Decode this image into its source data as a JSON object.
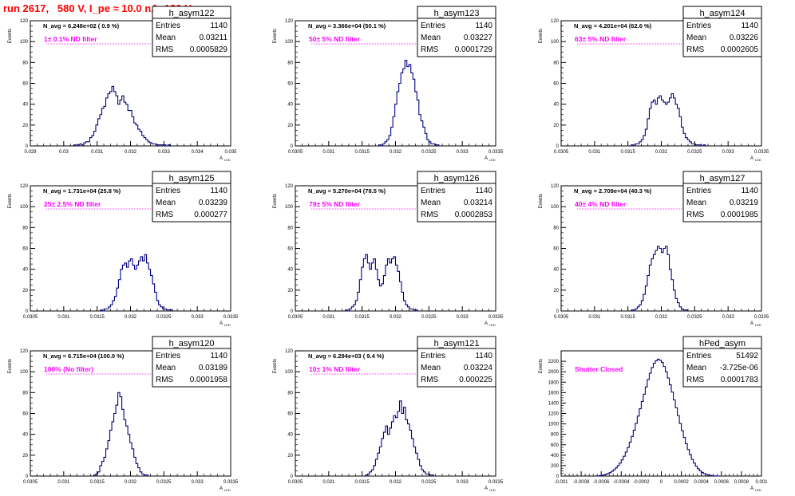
{
  "title": "run 2617,   580 V, I_pe ≈ 10.0 nA, 120 Hz",
  "colors": {
    "hist": "#000080",
    "filter_label": "#ff00ff",
    "title": "#ff0000"
  },
  "stat_labels": {
    "entries": "Entries",
    "mean": "Mean",
    "rms": "RMS"
  },
  "axis": {
    "ylabel": "Events",
    "xlabel_main": "A",
    "xlabel_sub": "LED"
  },
  "chart_data": [
    {
      "type": "histogram",
      "name": "h_asym122",
      "navg": "N_avg = 6.248e+02 ( 0.9 %)",
      "filter": "1± 0.1% ND filter",
      "entries": "1140",
      "mean": "0.03211",
      "rms": "0.0005829",
      "xlim": [
        0.029,
        0.035
      ],
      "ylim": [
        0,
        120
      ],
      "xticks": [
        "0.029",
        "0.03",
        "0.031",
        "0.032",
        "0.033",
        "0.034",
        "0.035"
      ],
      "yticks": [
        "0",
        "20",
        "40",
        "60",
        "80",
        "100",
        "120"
      ],
      "bins": {
        "x0": 0.0303,
        "w": 6e-05,
        "values": [
          1,
          0,
          1,
          2,
          1,
          3,
          4,
          4,
          8,
          10,
          14,
          20,
          26,
          30,
          36,
          38,
          46,
          50,
          52,
          57,
          52,
          48,
          40,
          44,
          48,
          42,
          40,
          34,
          34,
          28,
          22,
          20,
          16,
          14,
          10,
          8,
          6,
          4,
          3,
          2,
          2,
          1,
          1,
          1,
          1,
          1,
          0,
          1
        ]
      }
    },
    {
      "type": "histogram",
      "name": "h_asym123",
      "navg": "N_avg = 3.366e+04 (50.1 %)",
      "filter": "50± 5% ND filter",
      "entries": "1140",
      "mean": "0.03227",
      "rms": "0.0001729",
      "xlim": [
        0.0305,
        0.0335
      ],
      "ylim": [
        0,
        120
      ],
      "xticks": [
        "0.0305",
        "0.031",
        "0.0315",
        "0.032",
        "0.0325",
        "0.033",
        "0.0335"
      ],
      "yticks": [
        "0",
        "20",
        "40",
        "60",
        "80",
        "100",
        "120"
      ],
      "bins": {
        "x0": 0.03175,
        "w": 3e-05,
        "values": [
          1,
          0,
          2,
          4,
          6,
          10,
          18,
          28,
          40,
          52,
          60,
          70,
          74,
          82,
          76,
          78,
          70,
          64,
          52,
          44,
          30,
          24,
          18,
          12,
          6,
          4,
          2,
          2,
          1,
          1
        ]
      }
    },
    {
      "type": "histogram",
      "name": "h_asym124",
      "navg": "N_avg = 4.201e+04 (62.6 %)",
      "filter": "63± 5% ND filter",
      "entries": "1140",
      "mean": "0.03226",
      "rms": "0.0002605",
      "xlim": [
        0.0305,
        0.0335
      ],
      "ylim": [
        0,
        120
      ],
      "xticks": [
        "0.0305",
        "0.031",
        "0.0315",
        "0.032",
        "0.0325",
        "0.033",
        "0.0335"
      ],
      "yticks": [
        "0",
        "20",
        "40",
        "60",
        "80",
        "100",
        "120"
      ],
      "bins": {
        "x0": 0.03155,
        "w": 3e-05,
        "values": [
          1,
          0,
          2,
          2,
          4,
          6,
          10,
          16,
          26,
          36,
          42,
          44,
          40,
          46,
          48,
          44,
          42,
          40,
          42,
          46,
          50,
          46,
          40,
          36,
          28,
          18,
          12,
          8,
          6,
          4,
          2,
          2,
          1,
          1,
          1,
          0,
          1
        ]
      }
    },
    {
      "type": "histogram",
      "name": "h_asym125",
      "navg": "N_avg = 1.731e+04 (25.8 %)",
      "filter": "25± 2.5% ND filter",
      "entries": "1140",
      "mean": "0.03239",
      "rms": "0.000277",
      "xlim": [
        0.0305,
        0.0335
      ],
      "ylim": [
        0,
        120
      ],
      "xticks": [
        "0.0305",
        "0.031",
        "0.0315",
        "0.032",
        "0.0325",
        "0.033",
        "0.0335"
      ],
      "yticks": [
        "0",
        "20",
        "40",
        "60",
        "80",
        "100",
        "120"
      ],
      "bins": {
        "x0": 0.03155,
        "w": 3e-05,
        "values": [
          1,
          0,
          2,
          2,
          4,
          6,
          10,
          14,
          22,
          30,
          40,
          44,
          46,
          42,
          48,
          50,
          44,
          40,
          44,
          48,
          52,
          48,
          54,
          46,
          40,
          34,
          26,
          18,
          10,
          6,
          4,
          2,
          2,
          1,
          1,
          1
        ]
      }
    },
    {
      "type": "histogram",
      "name": "h_asym126",
      "navg": "N_avg = 5.270e+04 (78.5 %)",
      "filter": "79± 5% ND filter",
      "entries": "1140",
      "mean": "0.03214",
      "rms": "0.0002853",
      "xlim": [
        0.0305,
        0.0335
      ],
      "ylim": [
        0,
        120
      ],
      "xticks": [
        "0.0305",
        "0.031",
        "0.0315",
        "0.032",
        "0.0325",
        "0.033",
        "0.0335"
      ],
      "yticks": [
        "0",
        "20",
        "40",
        "60",
        "80",
        "100",
        "120"
      ],
      "bins": {
        "x0": 0.03125,
        "w": 3e-05,
        "values": [
          1,
          0,
          2,
          4,
          6,
          10,
          18,
          30,
          42,
          50,
          54,
          46,
          40,
          46,
          50,
          40,
          30,
          24,
          26,
          34,
          44,
          50,
          46,
          50,
          52,
          44,
          38,
          28,
          18,
          10,
          6,
          4,
          2,
          2,
          1,
          1
        ]
      }
    },
    {
      "type": "histogram",
      "name": "h_asym127",
      "navg": "N_avg = 2.709e+04 (40.3 %)",
      "filter": "40± 4% ND filter",
      "entries": "1140",
      "mean": "0.03219",
      "rms": "0.0001985",
      "xlim": [
        0.0305,
        0.0335
      ],
      "ylim": [
        0,
        120
      ],
      "xticks": [
        "0.0305",
        "0.031",
        "0.0315",
        "0.032",
        "0.0325",
        "0.033",
        "0.0335"
      ],
      "yticks": [
        "0",
        "20",
        "40",
        "60",
        "80",
        "100",
        "120"
      ],
      "bins": {
        "x0": 0.03155,
        "w": 3e-05,
        "values": [
          1,
          0,
          2,
          4,
          6,
          10,
          16,
          24,
          34,
          44,
          50,
          54,
          58,
          62,
          60,
          56,
          60,
          62,
          54,
          40,
          30,
          20,
          12,
          8,
          4,
          2,
          1,
          1
        ]
      }
    },
    {
      "type": "histogram",
      "name": "h_asym120",
      "navg": "N_avg = 6.715e+04 (100.0 %)",
      "filter": "100% (No filter)",
      "entries": "1140",
      "mean": "0.03189",
      "rms": "0.0001958",
      "xlim": [
        0.0305,
        0.0335
      ],
      "ylim": [
        0,
        120
      ],
      "xticks": [
        "0.0305",
        "0.031",
        "0.0315",
        "0.032",
        "0.0325",
        "0.033",
        "0.0335"
      ],
      "yticks": [
        "0",
        "20",
        "40",
        "60",
        "80",
        "100",
        "120"
      ],
      "bins": {
        "x0": 0.03145,
        "w": 3e-05,
        "values": [
          1,
          2,
          4,
          10,
          14,
          18,
          26,
          34,
          44,
          52,
          60,
          68,
          80,
          76,
          64,
          54,
          48,
          40,
          32,
          26,
          18,
          12,
          8,
          4,
          2,
          1,
          1
        ]
      }
    },
    {
      "type": "histogram",
      "name": "h_asym121",
      "navg": "N_avg = 6.294e+03 ( 9.4 %)",
      "filter": "10± 1% ND filter",
      "entries": "1140",
      "mean": "0.03224",
      "rms": "0.000225",
      "xlim": [
        0.0305,
        0.0335
      ],
      "ylim": [
        0,
        120
      ],
      "xticks": [
        "0.0305",
        "0.031",
        "0.0315",
        "0.032",
        "0.0325",
        "0.033",
        "0.0335"
      ],
      "yticks": [
        "0",
        "20",
        "40",
        "60",
        "80",
        "100",
        "120"
      ],
      "bins": {
        "x0": 0.03155,
        "w": 3e-05,
        "values": [
          1,
          2,
          4,
          6,
          10,
          16,
          22,
          28,
          36,
          42,
          48,
          40,
          46,
          52,
          58,
          56,
          62,
          72,
          60,
          66,
          54,
          50,
          44,
          36,
          28,
          22,
          16,
          10,
          6,
          4,
          2,
          2,
          1,
          1
        ]
      }
    },
    {
      "type": "histogram",
      "name": "hPed_asym",
      "navg": "",
      "filter": "Shutter Closed",
      "entries": "51492",
      "mean": "-3.725e-06",
      "rms": "0.0001783",
      "xlim": [
        -0.001,
        0.001
      ],
      "ylim": [
        0,
        2400
      ],
      "xticks": [
        "-0.001",
        "-0.0008",
        "-0.0006",
        "-0.0004",
        "-0.0002",
        "0",
        "0.0002",
        "0.0004",
        "0.0006",
        "0.0008",
        "0.001"
      ],
      "yticks": [
        "0",
        "200",
        "400",
        "600",
        "800",
        "1000",
        "1200",
        "1400",
        "1600",
        "1800",
        "2000",
        "2200"
      ],
      "bins": {
        "x0": -0.00066,
        "w": 2e-05,
        "values": [
          2,
          4,
          8,
          14,
          22,
          34,
          48,
          66,
          90,
          120,
          156,
          200,
          250,
          310,
          380,
          460,
          550,
          650,
          760,
          880,
          1010,
          1150,
          1290,
          1430,
          1570,
          1710,
          1850,
          1970,
          2080,
          2160,
          2210,
          2240,
          2220,
          2180,
          2100,
          2000,
          1880,
          1750,
          1610,
          1460,
          1310,
          1160,
          1010,
          870,
          740,
          620,
          510,
          410,
          320,
          250,
          190,
          140,
          100,
          70,
          48,
          32,
          20,
          12,
          7,
          4,
          2,
          1
        ]
      }
    }
  ]
}
